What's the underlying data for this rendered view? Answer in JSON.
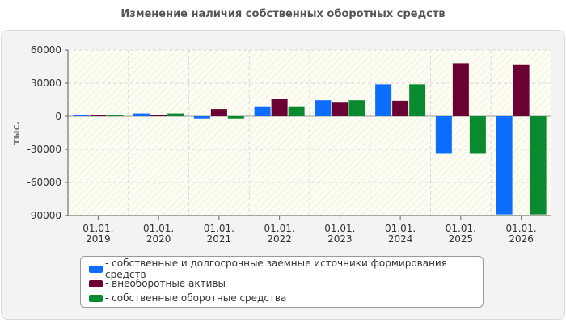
{
  "chart_data": {
    "type": "bar",
    "title": "Изменение наличия собственных оборотных средств",
    "ylabel": "тыс.",
    "ylim": [
      -90000,
      60000
    ],
    "yticks": [
      60000,
      30000,
      0,
      -30000,
      -60000,
      -90000
    ],
    "grid": true,
    "legend_position": "bottom",
    "categories": [
      [
        "01.01.",
        "2019"
      ],
      [
        "01.01.",
        "2020"
      ],
      [
        "01.01.",
        "2021"
      ],
      [
        "01.01.",
        "2022"
      ],
      [
        "01.01.",
        "2023"
      ],
      [
        "01.01.",
        "2024"
      ],
      [
        "01.01.",
        "2025"
      ],
      [
        "01.01.",
        "2026"
      ]
    ],
    "series": [
      {
        "name": "- собственные и долгосрочные заемные источники формирования средств",
        "color": "#0d6efd",
        "values": [
          1500,
          2500,
          -2000,
          9000,
          14500,
          29000,
          -34000,
          -89000
        ]
      },
      {
        "name": "- внеоборотные активы",
        "color": "#6b0032",
        "values": [
          1000,
          1000,
          6500,
          16000,
          13000,
          14000,
          48000,
          47000
        ]
      },
      {
        "name": "- собственные оборотные средства",
        "color": "#0a8a2e",
        "values": [
          1000,
          2500,
          -2000,
          9000,
          14500,
          29000,
          -34000,
          -89000
        ]
      }
    ]
  }
}
